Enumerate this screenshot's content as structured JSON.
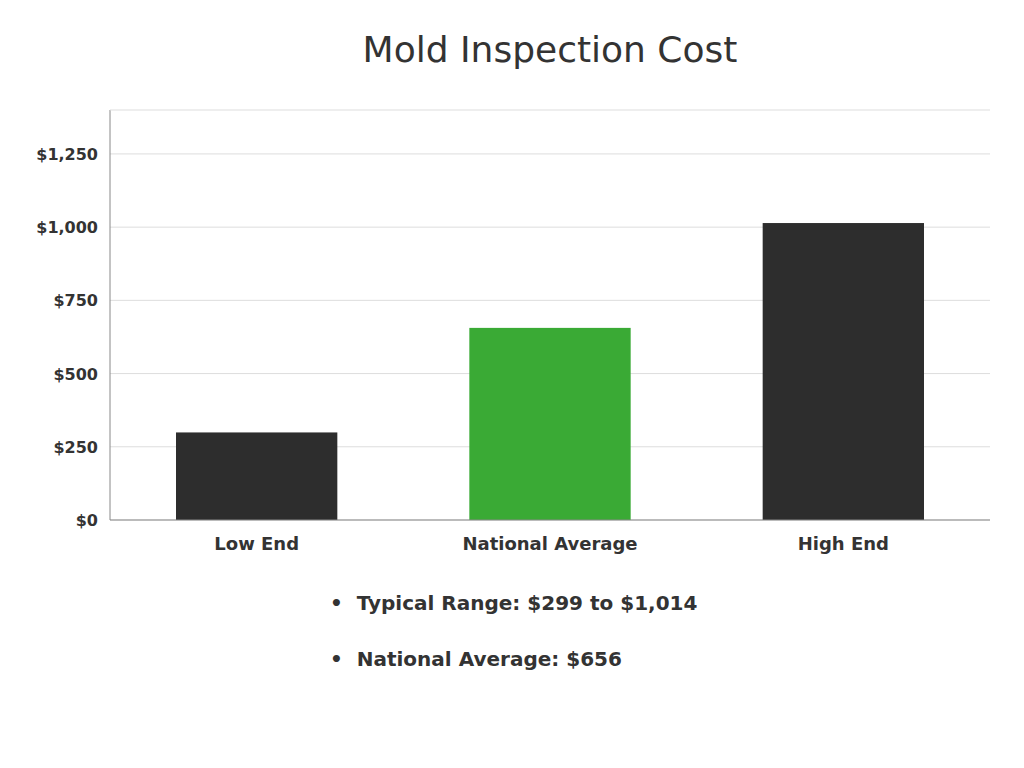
{
  "chart_data": {
    "type": "bar",
    "title": "Mold Inspection Cost",
    "categories": [
      "Low End",
      "National Average",
      "High End"
    ],
    "values": [
      299,
      656,
      1014
    ],
    "colors": [
      "#2d2d2d",
      "#3aaa35",
      "#2d2d2d"
    ],
    "ylim": [
      0,
      1400
    ],
    "yticks": [
      {
        "value": 0,
        "label": "$0"
      },
      {
        "value": 250,
        "label": "$250"
      },
      {
        "value": 500,
        "label": "$500"
      },
      {
        "value": 750,
        "label": "$750"
      },
      {
        "value": 1000,
        "label": "$1,000"
      },
      {
        "value": 1250,
        "label": "$1,250"
      }
    ],
    "grid": true,
    "annotations": [
      "•  Typical Range: $299 to $1,014",
      "•  National Average: $656"
    ]
  }
}
